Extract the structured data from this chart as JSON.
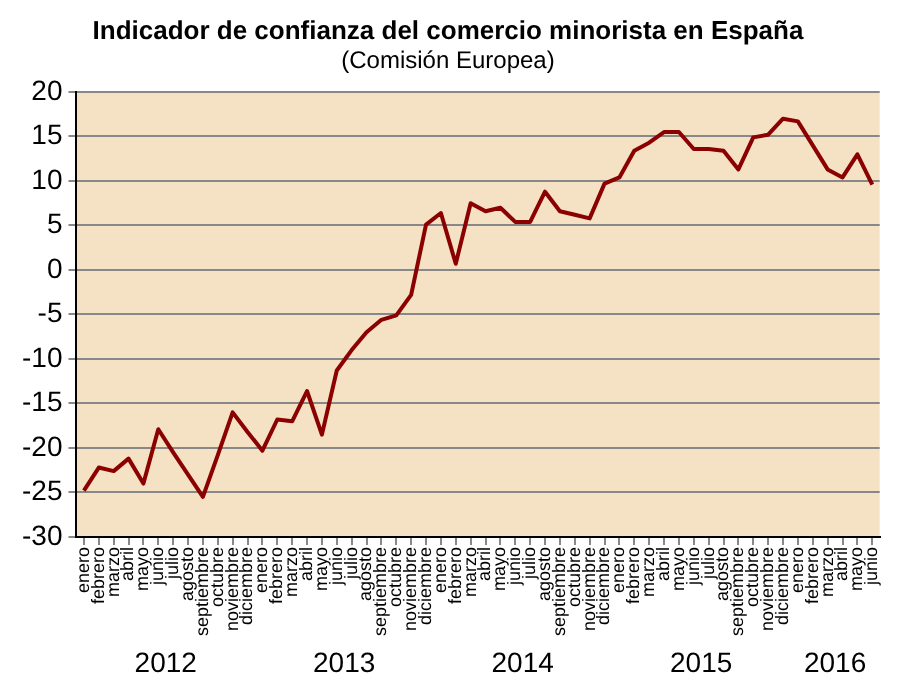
{
  "chart_data": {
    "type": "line",
    "title": "Indicador de confianza del comercio minorista en España",
    "subtitle": "(Comisión Europea)",
    "categories": [
      "enero",
      "febrero",
      "marzo",
      "abril",
      "mayo",
      "junio",
      "julio",
      "agosto",
      "septiembre",
      "octubre",
      "noviembre",
      "diciembre",
      "enero",
      "febrero",
      "marzo",
      "abril",
      "mayo",
      "junio",
      "julio",
      "agosto",
      "septiembre",
      "octubre",
      "noviembre",
      "diciembre",
      "enero",
      "febrero",
      "marzo",
      "abril",
      "mayo",
      "junio",
      "julio",
      "agosto",
      "septiembre",
      "octubre",
      "noviembre",
      "diciembre",
      "enero",
      "febrero",
      "marzo",
      "abril",
      "mayo",
      "junio",
      "julio",
      "agosto",
      "septiembre",
      "octubre",
      "noviembre",
      "diciembre",
      "enero",
      "febrero",
      "marzo",
      "abril",
      "mayo",
      "junio"
    ],
    "series": [
      {
        "color": "#8b0000",
        "values": [
          -24.8,
          -22.2,
          -22.6,
          -21.2,
          -24.0,
          -17.9,
          -20.5,
          -23.0,
          -25.5,
          -20.8,
          -16.0,
          -18.2,
          -20.3,
          -16.8,
          -17.0,
          -13.6,
          -18.5,
          -11.3,
          -9.0,
          -7.0,
          -5.6,
          -5.1,
          -2.8,
          5.1,
          6.4,
          0.7,
          7.5,
          6.6,
          7.0,
          5.4,
          5.4,
          8.8,
          6.6,
          6.2,
          5.8,
          9.7,
          10.4,
          13.4,
          14.3,
          15.5,
          15.5,
          13.6,
          13.6,
          13.4,
          11.3,
          14.9,
          15.2,
          17.0,
          16.7,
          14.0,
          11.3,
          10.4,
          13.0,
          9.6
        ]
      }
    ],
    "ylim": [
      -30,
      20
    ],
    "yticks": [
      -30,
      -25,
      -20,
      -15,
      -10,
      -5,
      0,
      5,
      10,
      15,
      20
    ],
    "grid": "y",
    "legend": false,
    "marker": "none",
    "line_style": "solid",
    "annotations": [
      "2012",
      "2013",
      "2014",
      "2015",
      "2016"
    ]
  }
}
